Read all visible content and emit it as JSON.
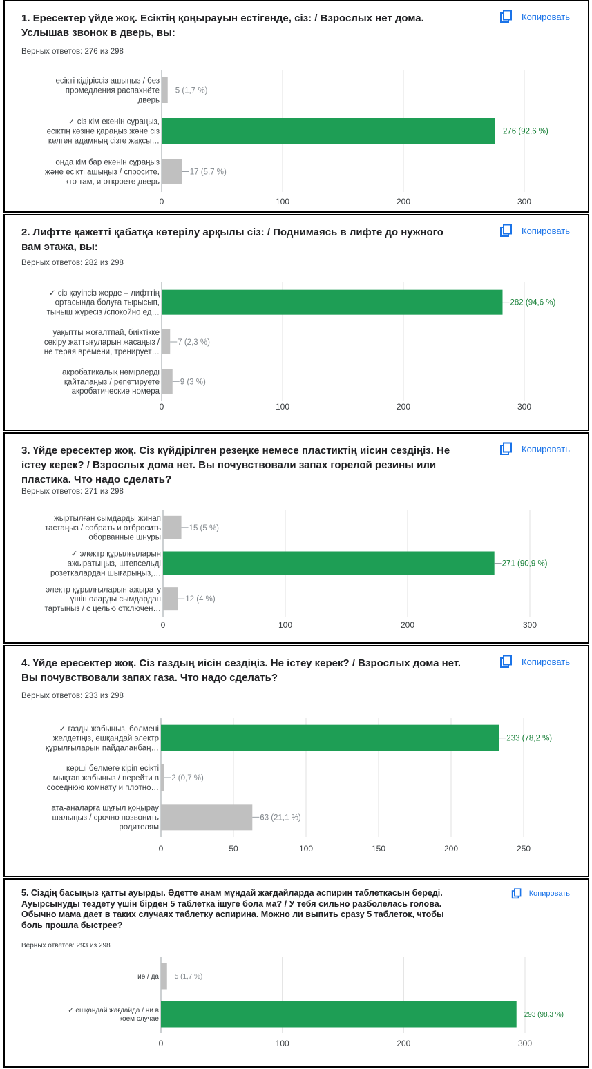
{
  "ui": {
    "copy_label": "Копировать",
    "copy_icon": "copy-icon",
    "accent": "#1a73e8",
    "correct_color": "#1e9e55",
    "incorrect_color": "#c0c0c0",
    "value_correct_color": "#188038",
    "value_other_color": "#80868b"
  },
  "questions": [
    {
      "title": "1. Ересектер үйде жоқ. Есіктің қоңырауын естігенде, сіз: / Взрослых нет дома. Услышав звонок в дверь, вы:",
      "answers": "Верных ответов: 276 из 298"
    },
    {
      "title": "2. Лифтте қажетті қабатқа көтерілу арқылы сіз: / Поднимаясь в лифте до нужного вам этажа, вы:",
      "answers": "Верных ответов: 282 из 298"
    },
    {
      "title": "3. Үйде ересектер жоқ. Сіз күйдірілген резеңке немесе пластиктің иісин сездіңіз. Не істеу керек? /  Взрослых дома нет. Вы почувствовали запах горелой резины или пластика. Что надо сделать?",
      "answers": "Верных ответов: 271 из 298"
    },
    {
      "title": "4. Үйде ересектер жоқ. Сіз газдың иісін сездіңіз. Не істеу керек? / Взрослых дома нет. Вы почувствовали запах газа. Что надо сделать?",
      "answers": "Верных ответов: 233 из 298"
    },
    {
      "title": "5. Сіздің басыңыз қатты ауырды. Әдетте анам мұндай жағдайларда аспирин таблеткасын береді. Ауырсынуды тездету үшін бірден 5 таблетка ішуге бола ма? / У тебя сильно разболелась голова. Обычно мама дает в таких случаях таблетку аспирина. Можно ли выпить сразу 5 таблеток, чтобы боль прошла быстрее?",
      "answers": "Верных ответов: 293 из 298"
    }
  ],
  "chart_data": [
    {
      "type": "bar",
      "orientation": "horizontal",
      "xlim": [
        0,
        300
      ],
      "xticks": [
        0,
        100,
        200,
        300
      ],
      "grid": true,
      "bars": [
        {
          "label": [
            "есікті кідіріссіз ашыңыз / без",
            "промедления распахнёте",
            "дверь"
          ],
          "value": 5,
          "display": "5 (1,7 %)",
          "correct": false
        },
        {
          "label": [
            "✓ сіз кім екенін сұраңыз,",
            "есіктің көзіне қараңыз және сіз",
            "келген адамның сізге жақсы…"
          ],
          "value": 276,
          "display": "276 (92,6 %)",
          "correct": true
        },
        {
          "label": [
            "онда кім бар екенін сұраңыз",
            "және есікті ашыңыз / спросите,",
            "кто там, и откроете дверь"
          ],
          "value": 17,
          "display": "17 (5,7 %)",
          "correct": false
        }
      ]
    },
    {
      "type": "bar",
      "orientation": "horizontal",
      "xlim": [
        0,
        300
      ],
      "xticks": [
        0,
        100,
        200,
        300
      ],
      "grid": true,
      "bars": [
        {
          "label": [
            "✓ сіз қауіпсіз жерде – лифттің",
            "ортасында болуға тырысып,",
            "тыныш жүресіз /спокойно ед…"
          ],
          "value": 282,
          "display": "282 (94,6 %)",
          "correct": true
        },
        {
          "label": [
            "уақытты жоғалтпай, биіктікке",
            "секіру жаттығуларын жасаңыз /",
            "не теряя времени, тренирует…"
          ],
          "value": 7,
          "display": "7 (2,3 %)",
          "correct": false
        },
        {
          "label": [
            "акробатикалық нөмірлерді",
            "қайталаңыз / репетируете",
            "акробатические номера"
          ],
          "value": 9,
          "display": "9 (3 %)",
          "correct": false
        }
      ]
    },
    {
      "type": "bar",
      "orientation": "horizontal",
      "xlim": [
        0,
        300
      ],
      "xticks": [
        0,
        100,
        200,
        300
      ],
      "grid": true,
      "bars": [
        {
          "label": [
            "жыртылған сымдарды жинап",
            "тастаңыз / собрать и отбросить",
            "оборванные шнуры"
          ],
          "value": 15,
          "display": "15 (5 %)",
          "correct": false
        },
        {
          "label": [
            "✓ электр құрылғыларын",
            "ажыратыңыз, штепсельді",
            "розеткалардан шығарыңыз,…"
          ],
          "value": 271,
          "display": "271 (90,9 %)",
          "correct": true
        },
        {
          "label": [
            "электр құрылғыларын ажырату",
            "үшін оларды сымдардан",
            "тартыңыз / с целью отключен…"
          ],
          "value": 12,
          "display": "12 (4 %)",
          "correct": false
        }
      ]
    },
    {
      "type": "bar",
      "orientation": "horizontal",
      "xlim": [
        0,
        250
      ],
      "xticks": [
        0,
        50,
        100,
        150,
        200,
        250
      ],
      "grid": true,
      "bars": [
        {
          "label": [
            "✓ газды жабыңыз, бөлмені",
            "желдетіңіз, ешқандай электр",
            "құрылғыларын пайдаланбаң…"
          ],
          "value": 233,
          "display": "233 (78,2 %)",
          "correct": true
        },
        {
          "label": [
            "көрші бөлмеге кіріп есікті",
            "мықтап жабыңыз / перейти в",
            "соседнюю комнату и плотно…"
          ],
          "value": 2,
          "display": "2 (0,7 %)",
          "correct": false
        },
        {
          "label": [
            "ата-аналарға шұғыл қоңырау",
            "шалыңыз / срочно позвонить",
            "родителям"
          ],
          "value": 63,
          "display": "63 (21,1 %)",
          "correct": false
        }
      ]
    },
    {
      "type": "bar",
      "orientation": "horizontal",
      "xlim": [
        0,
        300
      ],
      "xticks": [
        0,
        100,
        200,
        300
      ],
      "grid": true,
      "bars": [
        {
          "label": [
            "иә / да"
          ],
          "value": 5,
          "display": "5 (1,7 %)",
          "correct": false
        },
        {
          "label": [
            "✓ ешқандай жағдайда / ни в",
            "коем случае"
          ],
          "value": 293,
          "display": "293 (98,3 %)",
          "correct": true
        }
      ]
    }
  ]
}
